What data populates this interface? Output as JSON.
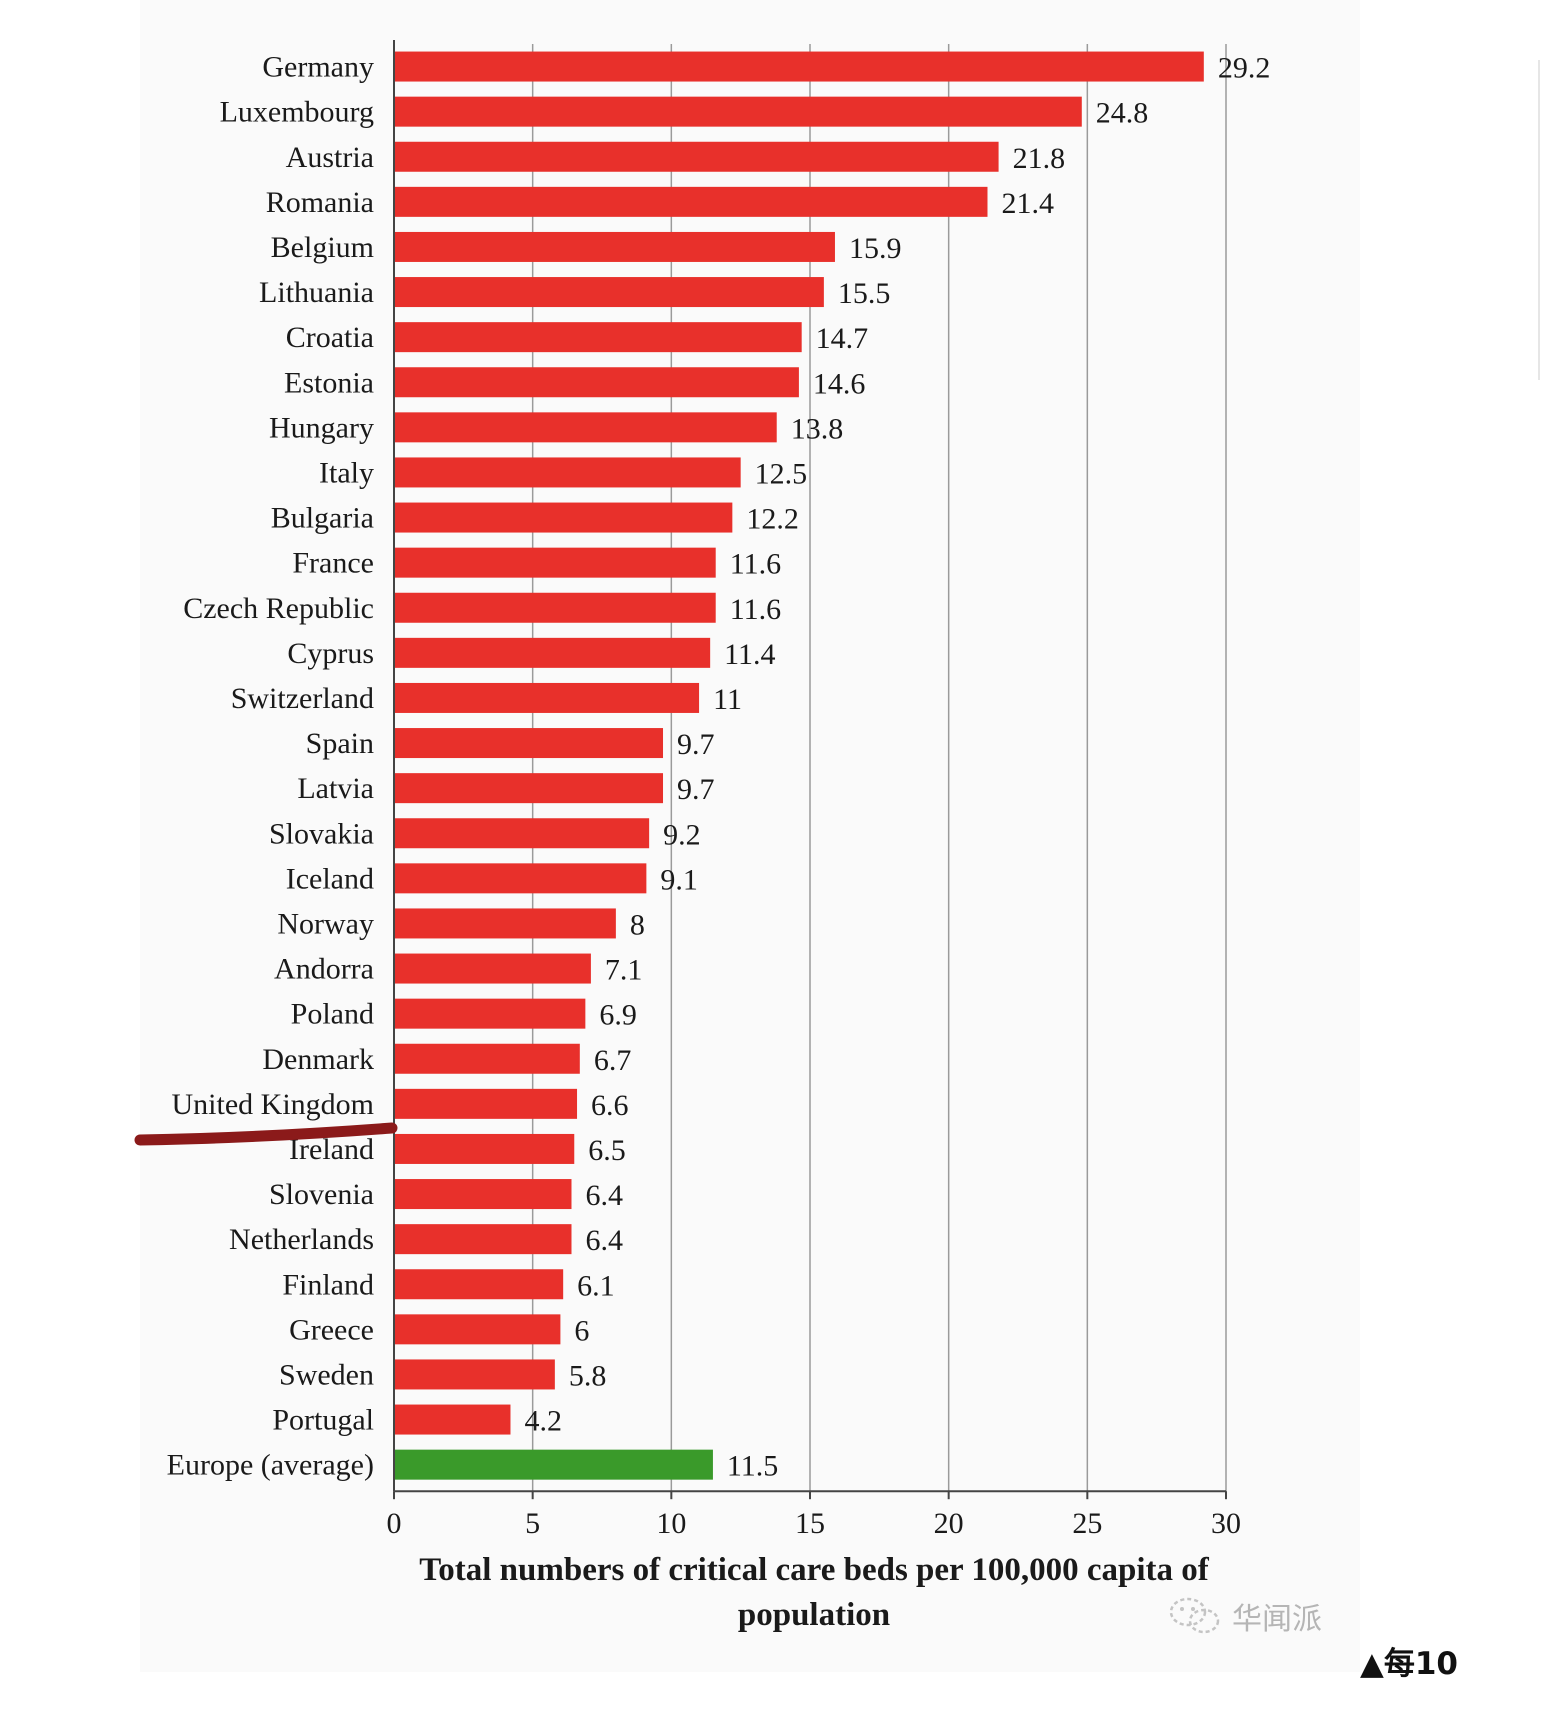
{
  "chart_data": {
    "type": "bar",
    "orientation": "horizontal",
    "categories": [
      "Germany",
      "Luxembourg",
      "Austria",
      "Romania",
      "Belgium",
      "Lithuania",
      "Croatia",
      "Estonia",
      "Hungary",
      "Italy",
      "Bulgaria",
      "France",
      "Czech Republic",
      "Cyprus",
      "Switzerland",
      "Spain",
      "Latvia",
      "Slovakia",
      "Iceland",
      "Norway",
      "Andorra",
      "Poland",
      "Denmark",
      "United Kingdom",
      "Ireland",
      "Slovenia",
      "Netherlands",
      "Finland",
      "Greece",
      "Sweden",
      "Portugal",
      "Europe (average)"
    ],
    "values": [
      29.2,
      24.8,
      21.8,
      21.4,
      15.9,
      15.5,
      14.7,
      14.6,
      13.8,
      12.5,
      12.2,
      11.6,
      11.6,
      11.4,
      11,
      9.7,
      9.7,
      9.2,
      9.1,
      8,
      7.1,
      6.9,
      6.7,
      6.6,
      6.5,
      6.4,
      6.4,
      6.1,
      6,
      5.8,
      4.2,
      11.5
    ],
    "value_labels": [
      "29.2",
      "24.8",
      "21.8",
      "21.4",
      "15.9",
      "15.5",
      "14.7",
      "14.6",
      "13.8",
      "12.5",
      "12.2",
      "11.6",
      "11.6",
      "11.4",
      "11",
      "9.7",
      "9.7",
      "9.2",
      "9.1",
      "8",
      "7.1",
      "6.9",
      "6.7",
      "6.6",
      "6.5",
      "6.4",
      "6.4",
      "6.1",
      "6",
      "5.8",
      "4.2",
      "11.5"
    ],
    "xlabel": "Total numbers of critical care beds per 100,000 capita of population",
    "ylabel": "",
    "xlim": [
      0,
      30
    ],
    "xticks": [
      0,
      5,
      10,
      15,
      20,
      25,
      30
    ],
    "grid": "vertical",
    "bar_color": "#e8302b",
    "highlight_color": "#3a9a2a",
    "highlight_category": "Europe (average)",
    "annotation": "hand-drawn dark red line pointing at United Kingdom"
  },
  "watermark": {
    "text": "华闻派",
    "icon": "wechat-icon"
  },
  "caption": {
    "text": "▲每10"
  },
  "colors": {
    "annotation_stroke": "#8b1a1a",
    "grid": "#9a9a9a",
    "axis": "#444444"
  }
}
